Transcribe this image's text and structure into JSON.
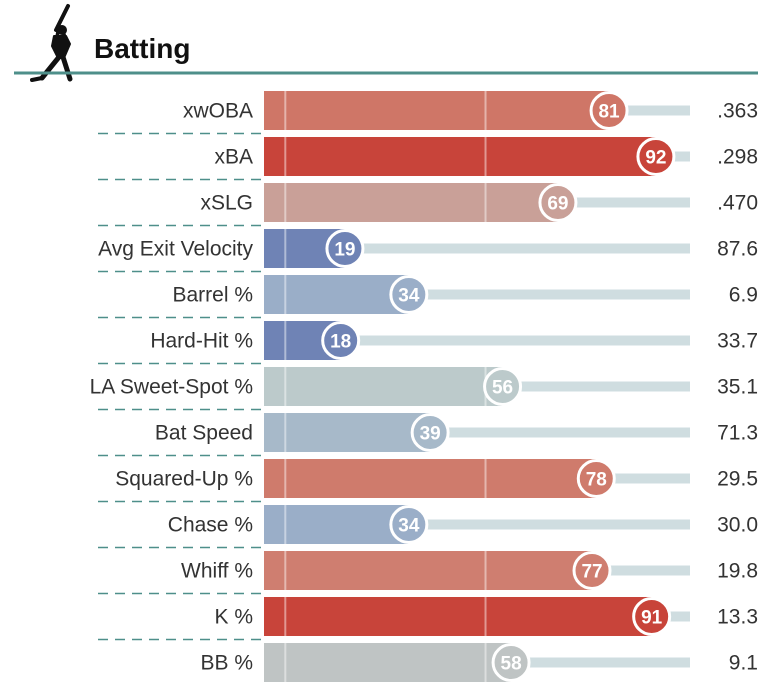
{
  "header": {
    "title": "Batting",
    "icon": "batter-silhouette-icon",
    "rule_color": "#4e8f8a"
  },
  "chart_data": {
    "type": "bar",
    "orientation": "horizontal",
    "xlim": [
      0,
      100
    ],
    "categories": [
      "xwOBA",
      "xBA",
      "xSLG",
      "Avg Exit Velocity",
      "Barrel %",
      "Hard-Hit %",
      "LA Sweet-Spot %",
      "Bat Speed",
      "Squared-Up %",
      "Chase %",
      "Whiff %",
      "K %",
      "BB %"
    ],
    "values": [
      81,
      92,
      69,
      19,
      34,
      18,
      56,
      39,
      78,
      34,
      77,
      91,
      58
    ],
    "stats": [
      ".363",
      ".298",
      ".470",
      "87.6",
      "6.9",
      "33.7",
      "35.1",
      "71.3",
      "29.5",
      "30.0",
      "19.8",
      "13.3",
      "9.1"
    ],
    "colors": [
      "#cf7667",
      "#c8443a",
      "#c9a098",
      "#6f83b5",
      "#9aaec8",
      "#6f83b5",
      "#bccacb",
      "#a7b9c9",
      "#cf7b6c",
      "#9aaec8",
      "#cf7e70",
      "#c8443a",
      "#bfc4c4"
    ],
    "track_color": "#cfdde0",
    "grid": true
  }
}
